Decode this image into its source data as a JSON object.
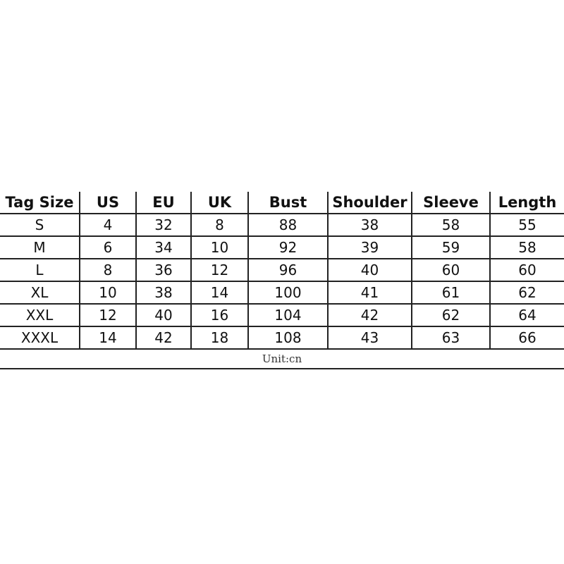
{
  "table": {
    "headers": [
      "Tag Size",
      "US",
      "EU",
      "UK",
      "Bust",
      "Shoulder",
      "Sleeve",
      "Length"
    ],
    "rows": [
      [
        "S",
        "4",
        "32",
        "8",
        "88",
        "38",
        "58",
        "55"
      ],
      [
        "M",
        "6",
        "34",
        "10",
        "92",
        "39",
        "59",
        "58"
      ],
      [
        "L",
        "8",
        "36",
        "12",
        "96",
        "40",
        "60",
        "60"
      ],
      [
        "XL",
        "10",
        "38",
        "14",
        "100",
        "41",
        "61",
        "62"
      ],
      [
        "XXL",
        "12",
        "40",
        "16",
        "104",
        "42",
        "62",
        "64"
      ],
      [
        "XXXL",
        "14",
        "42",
        "18",
        "108",
        "43",
        "63",
        "66"
      ]
    ],
    "unit_note": "Unit:cn"
  }
}
